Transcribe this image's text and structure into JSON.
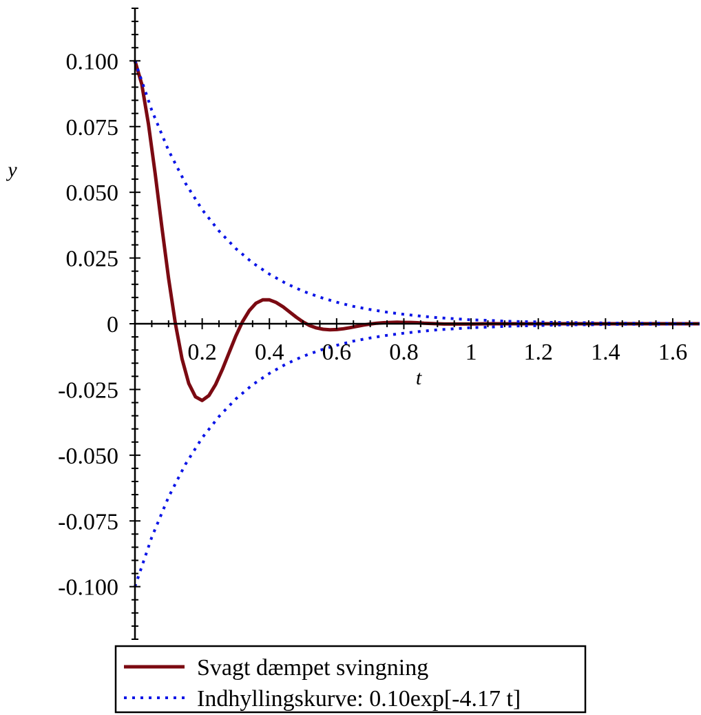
{
  "chart_data": {
    "type": "line",
    "title": "",
    "xlabel": "t",
    "ylabel": "y",
    "xlim": [
      0,
      1.68
    ],
    "ylim": [
      -0.12,
      0.12
    ],
    "x_ticks": [
      0.2,
      0.4,
      0.6,
      0.8,
      1,
      1.2,
      1.4,
      1.6
    ],
    "x_tick_labels": [
      "0.2",
      "0.4",
      "0.6",
      "0.8",
      "1",
      "1.2",
      "1.4",
      "1.6"
    ],
    "y_ticks": [
      0.1,
      0.075,
      0.05,
      0.025,
      0,
      -0.025,
      -0.05,
      -0.075,
      -0.1
    ],
    "y_tick_labels": [
      "0.100",
      "0.075",
      "0.050",
      "0.025",
      "0",
      "-0.025",
      "-0.050",
      "-0.075",
      "-0.100"
    ],
    "grid": false,
    "legend_position": "bottom",
    "series": [
      {
        "name": "Svagt dæmpet svingning",
        "style": "solid",
        "color": "#7b0a12",
        "x": [
          0,
          0.02,
          0.04,
          0.06,
          0.08,
          0.1,
          0.12,
          0.14,
          0.16,
          0.18,
          0.2,
          0.22,
          0.24,
          0.26,
          0.28,
          0.3,
          0.32,
          0.34,
          0.36,
          0.38,
          0.4,
          0.42,
          0.44,
          0.46,
          0.48,
          0.5,
          0.52,
          0.54,
          0.56,
          0.58,
          0.6,
          0.62,
          0.64,
          0.66,
          0.68,
          0.7,
          0.72,
          0.74,
          0.76,
          0.78,
          0.8,
          0.82,
          0.84,
          0.86,
          0.88,
          0.9,
          0.92,
          0.94,
          0.96,
          0.98,
          1,
          1.05,
          1.1,
          1.15,
          1.2,
          1.25,
          1.3,
          1.35,
          1.4,
          1.45,
          1.5,
          1.55,
          1.6,
          1.65,
          1.68
        ],
        "y": [
          0.1,
          0.0912,
          0.0761,
          0.0572,
          0.0369,
          0.0173,
          0.0002,
          -0.0133,
          -0.0227,
          -0.0278,
          -0.0292,
          -0.0273,
          -0.0231,
          -0.0174,
          -0.011,
          -0.0047,
          0.0008,
          0.005,
          0.0078,
          0.0091,
          0.0091,
          0.0081,
          0.0065,
          0.0045,
          0.0025,
          0.0007,
          -0.0007,
          -0.0016,
          -0.0021,
          -0.0023,
          -0.0022,
          -0.0019,
          -0.0015,
          -0.001,
          -0.0005,
          -0.0001,
          0.0002,
          0.0004,
          0.0005,
          0.0006,
          0.0005,
          0.0005,
          0.0004,
          0.0002,
          0.0001,
          0.0,
          -0.0001,
          -0.0001,
          -0.0001,
          -0.0001,
          -0.0001,
          0.0,
          0.0,
          0.0,
          0.0,
          0.0,
          0.0,
          0.0,
          0.0,
          0.0,
          0.0,
          0.0,
          0.0,
          0.0,
          0.0
        ]
      },
      {
        "name": "Indhyllingskurve: 0.10exp[-4.17 t]",
        "style": "dotted",
        "color": "#0a14e6",
        "x": [
          0,
          0.05,
          0.1,
          0.15,
          0.2,
          0.25,
          0.3,
          0.35,
          0.4,
          0.45,
          0.5,
          0.55,
          0.6,
          0.65,
          0.7,
          0.75,
          0.8,
          0.85,
          0.9,
          0.95,
          1,
          1.05,
          1.1,
          1.15,
          1.2,
          1.25,
          1.3,
          1.35,
          1.4,
          1.45,
          1.5,
          1.55,
          1.6,
          1.65,
          1.68
        ],
        "y": [
          0.1,
          0.0812,
          0.0659,
          0.0535,
          0.0434,
          0.0353,
          0.0286,
          0.0232,
          0.0189,
          0.0153,
          0.0124,
          0.0101,
          0.0082,
          0.0066,
          0.0054,
          0.0044,
          0.0036,
          0.0029,
          0.0023,
          0.0019,
          0.0015,
          0.0013,
          0.001,
          0.0008,
          0.0007,
          0.0005,
          0.0004,
          0.0004,
          0.0003,
          0.0002,
          0.0002,
          0.0002,
          0.0001,
          0.0001,
          0.0001
        ]
      },
      {
        "name": "",
        "style": "dotted",
        "color": "#0a14e6",
        "x": [
          0,
          0.05,
          0.1,
          0.15,
          0.2,
          0.25,
          0.3,
          0.35,
          0.4,
          0.45,
          0.5,
          0.55,
          0.6,
          0.65,
          0.7,
          0.75,
          0.8,
          0.85,
          0.9,
          0.95,
          1,
          1.05,
          1.1,
          1.15,
          1.2,
          1.25,
          1.3,
          1.35,
          1.4,
          1.45,
          1.5,
          1.55,
          1.6,
          1.65,
          1.68
        ],
        "y": [
          -0.1,
          -0.0812,
          -0.0659,
          -0.0535,
          -0.0434,
          -0.0353,
          -0.0286,
          -0.0232,
          -0.0189,
          -0.0153,
          -0.0124,
          -0.0101,
          -0.0082,
          -0.0066,
          -0.0054,
          -0.0044,
          -0.0036,
          -0.0029,
          -0.0023,
          -0.0019,
          -0.0015,
          -0.0013,
          -0.001,
          -0.0008,
          -0.0007,
          -0.0005,
          -0.0004,
          -0.0004,
          -0.0003,
          -0.0002,
          -0.0002,
          -0.0002,
          -0.0001,
          -0.0001,
          -0.0001
        ]
      }
    ],
    "legend": [
      {
        "label": "Svagt dæmpet svingning",
        "style": "solid",
        "color": "#7b0a12"
      },
      {
        "label": "Indhyllingskurve: 0.10exp[-4.17 t]",
        "style": "dotted",
        "color": "#0a14e6"
      }
    ]
  }
}
